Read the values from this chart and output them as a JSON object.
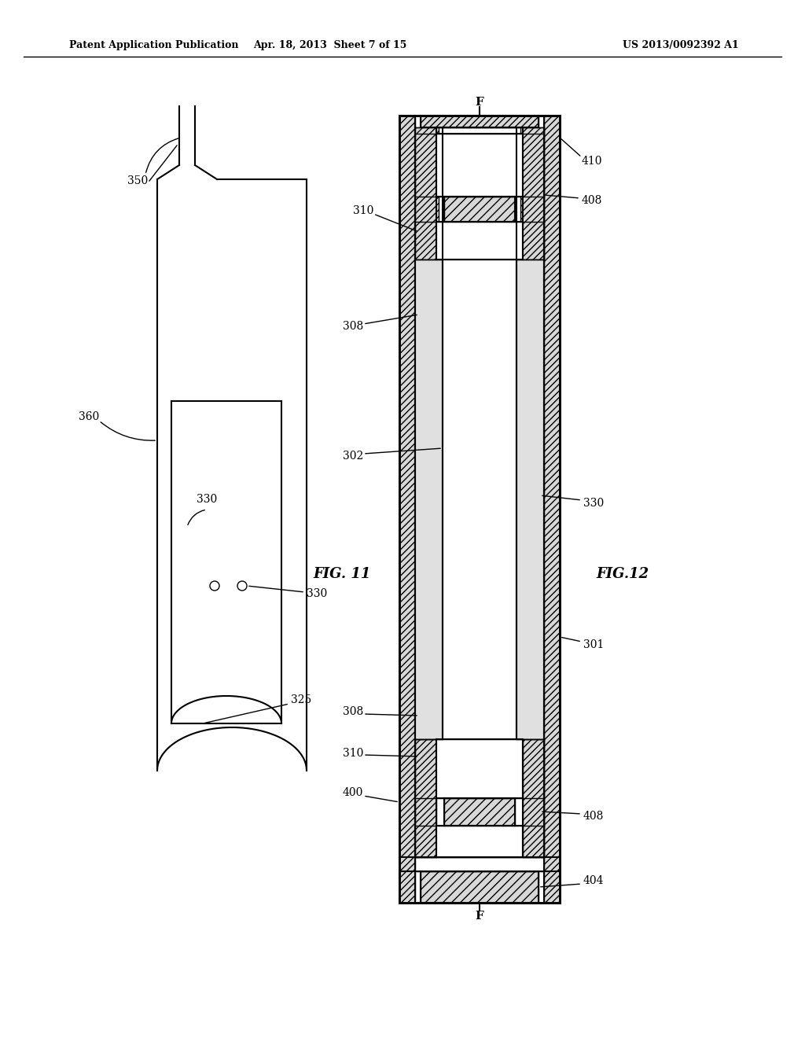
{
  "bg_color": "#ffffff",
  "header_left": "Patent Application Publication",
  "header_mid": "Apr. 18, 2013  Sheet 7 of 15",
  "header_right": "US 2013/0092392 A1",
  "fig11_label": "FIG. 11",
  "fig12_label": "FIG.12",
  "black": "#000000",
  "gray_hatch": "#cccccc",
  "lw_thick": 2.0,
  "lw_med": 1.5,
  "lw_thin": 1.0,
  "lw_vt": 0.7
}
